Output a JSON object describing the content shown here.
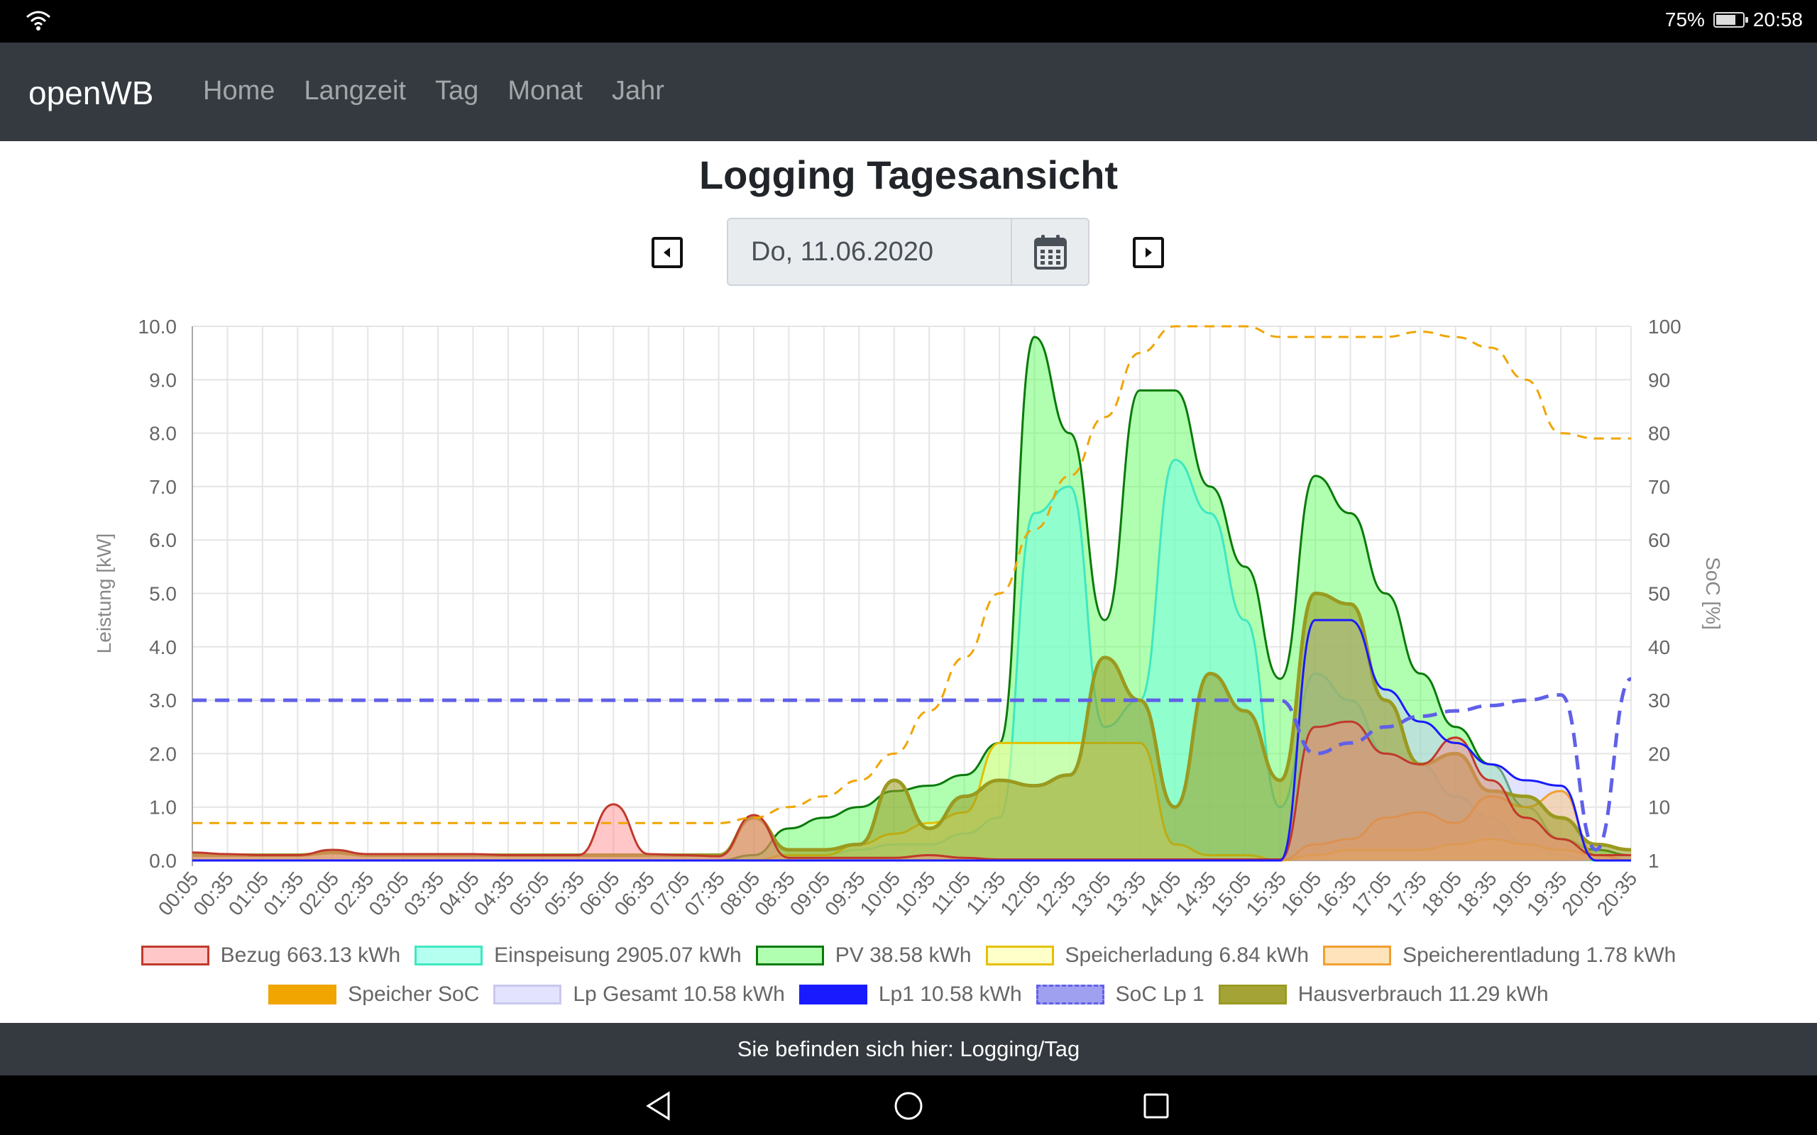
{
  "status": {
    "battery": "75%",
    "battery_level": 0.75,
    "time": "20:58"
  },
  "nav": {
    "brand": "openWB",
    "links": [
      "Home",
      "Langzeit",
      "Tag",
      "Monat",
      "Jahr"
    ]
  },
  "page": {
    "title": "Logging Tagesansicht",
    "date": "Do, 11.06.2020"
  },
  "footer": {
    "text": "Sie befinden sich hier: Logging/Tag"
  },
  "colors": {
    "bezug": "#c0392b",
    "bezug_fill": "rgba(255,130,130,0.45)",
    "einspeisung": "#3ee8c0",
    "einspeisung_fill": "rgba(120,255,230,0.55)",
    "pv": "#0a7a0a",
    "pv_fill": "rgba(80,255,80,0.45)",
    "speicherladung": "#e5c000",
    "speicherladung_fill": "rgba(255,255,150,0.5)",
    "speicherentladung": "#f0a030",
    "speicherentladung_fill": "rgba(255,200,120,0.5)",
    "speicher_soc": "#f0a500",
    "lp_gesamt_fill": "rgba(200,200,255,0.5)",
    "lp1": "#1a1aff",
    "soc_lp1": "#6060e8",
    "hausverbrauch": "#9a9a20"
  },
  "chart_data": {
    "type": "line",
    "x": [
      "00:05",
      "00:35",
      "01:05",
      "01:35",
      "02:05",
      "02:35",
      "03:05",
      "03:35",
      "04:05",
      "04:35",
      "05:05",
      "05:35",
      "06:05",
      "06:35",
      "07:05",
      "07:35",
      "08:05",
      "08:35",
      "09:05",
      "09:35",
      "10:05",
      "10:35",
      "11:05",
      "11:35",
      "12:05",
      "12:35",
      "13:05",
      "13:35",
      "14:05",
      "14:35",
      "15:05",
      "15:35",
      "16:05",
      "16:35",
      "17:05",
      "17:35",
      "18:05",
      "18:35",
      "19:05",
      "19:35",
      "20:05",
      "20:35"
    ],
    "ylabel": "Leistung [kW]",
    "y2label": "SoC [%]",
    "ylim": [
      0,
      10
    ],
    "yticks": [
      "0.0",
      "1.0",
      "2.0",
      "3.0",
      "4.0",
      "5.0",
      "6.0",
      "7.0",
      "8.0",
      "9.0",
      "10.0"
    ],
    "y2lim": [
      0,
      100
    ],
    "y2ticks": [
      "1",
      "10",
      "20",
      "30",
      "40",
      "50",
      "60",
      "70",
      "80",
      "90",
      "100"
    ],
    "grid": true,
    "legend_position": "bottom",
    "series": [
      {
        "name": "Bezug 663.13 kWh",
        "type": "area",
        "values": [
          0.15,
          0.12,
          0.1,
          0.1,
          0.2,
          0.12,
          0.12,
          0.12,
          0.12,
          0.1,
          0.1,
          0.1,
          1.05,
          0.12,
          0.1,
          0.08,
          0.85,
          0.05,
          0.05,
          0.05,
          0.05,
          0.1,
          0.05,
          0.02,
          0.02,
          0.02,
          0.02,
          0.02,
          0.02,
          0.02,
          0.02,
          0.02,
          2.5,
          2.6,
          2.0,
          1.8,
          2.3,
          1.5,
          0.8,
          0.4,
          0.1,
          0.1
        ]
      },
      {
        "name": "Einspeisung 2905.07 kWh",
        "type": "area",
        "values": [
          0,
          0,
          0,
          0,
          0,
          0,
          0,
          0,
          0,
          0,
          0,
          0,
          0,
          0,
          0,
          0,
          0,
          0.1,
          0.1,
          0.2,
          0.3,
          0.3,
          0.5,
          0.8,
          6.5,
          7.0,
          2.5,
          3.0,
          7.5,
          6.5,
          4.5,
          1.0,
          3.5,
          3.0,
          2.0,
          1.8,
          1.2,
          0.8,
          0.3,
          0.1,
          0,
          0
        ]
      },
      {
        "name": "PV 38.58 kWh",
        "type": "area",
        "values": [
          0,
          0,
          0,
          0,
          0,
          0,
          0,
          0,
          0,
          0,
          0,
          0,
          0,
          0,
          0,
          0,
          0.1,
          0.6,
          0.8,
          1.0,
          1.3,
          1.4,
          1.6,
          2.2,
          9.8,
          8.0,
          4.5,
          8.8,
          8.8,
          7.0,
          5.5,
          3.4,
          7.2,
          6.5,
          5.0,
          3.5,
          2.5,
          1.8,
          1.0,
          0.4,
          0.2,
          0.1
        ]
      },
      {
        "name": "Speicherladung 6.84 kWh",
        "type": "area",
        "values": [
          0,
          0,
          0,
          0,
          0,
          0,
          0,
          0,
          0,
          0,
          0,
          0,
          0,
          0,
          0,
          0,
          0,
          0.1,
          0.1,
          0.3,
          0.5,
          0.7,
          0.9,
          2.2,
          2.2,
          2.2,
          2.2,
          2.2,
          0.3,
          0.1,
          0.1,
          0,
          0.1,
          0.2,
          0.2,
          0.2,
          0.3,
          0.4,
          0.3,
          0.2,
          0.1,
          0
        ]
      },
      {
        "name": "Speicherentladung 1.78 kWh",
        "type": "area",
        "values": [
          0,
          0,
          0,
          0,
          0,
          0,
          0,
          0,
          0,
          0,
          0,
          0,
          0,
          0,
          0,
          0,
          0,
          0,
          0,
          0,
          0,
          0,
          0,
          0,
          0,
          0,
          0,
          0,
          0,
          0,
          0,
          0,
          0.3,
          0.4,
          0.8,
          0.9,
          0.7,
          1.2,
          1.0,
          1.3,
          0.1,
          0
        ]
      },
      {
        "name": "Speicher SoC",
        "type": "line",
        "axis": "right",
        "dashed": true,
        "values": [
          7,
          7,
          7,
          7,
          7,
          7,
          7,
          7,
          7,
          7,
          7,
          7,
          7,
          7,
          7,
          7,
          8,
          10,
          12,
          15,
          20,
          28,
          38,
          50,
          62,
          72,
          83,
          95,
          100,
          100,
          100,
          98,
          98,
          98,
          98,
          99,
          98,
          96,
          90,
          80,
          79,
          79
        ]
      },
      {
        "name": "Lp Gesamt 10.58 kWh",
        "type": "area",
        "values": [
          0,
          0,
          0,
          0,
          0,
          0,
          0,
          0,
          0,
          0,
          0,
          0,
          0,
          0,
          0,
          0,
          0,
          0,
          0,
          0,
          0,
          0,
          0,
          0,
          0,
          0,
          0,
          0,
          0,
          0,
          0,
          0,
          4.5,
          4.5,
          3.2,
          2.6,
          2.2,
          1.8,
          1.5,
          1.4,
          0,
          0
        ]
      },
      {
        "name": "Lp1 10.58 kWh",
        "type": "line",
        "values": [
          0,
          0,
          0,
          0,
          0,
          0,
          0,
          0,
          0,
          0,
          0,
          0,
          0,
          0,
          0,
          0,
          0,
          0,
          0,
          0,
          0,
          0,
          0,
          0,
          0,
          0,
          0,
          0,
          0,
          0,
          0,
          0,
          4.5,
          4.5,
          3.2,
          2.6,
          2.2,
          1.8,
          1.5,
          1.4,
          0,
          0
        ]
      },
      {
        "name": "SoC Lp 1",
        "type": "line",
        "axis": "right",
        "dashed": true,
        "values": [
          30,
          30,
          30,
          30,
          30,
          30,
          30,
          30,
          30,
          30,
          30,
          30,
          30,
          30,
          30,
          30,
          30,
          30,
          30,
          30,
          30,
          30,
          30,
          30,
          30,
          30,
          30,
          30,
          30,
          30,
          30,
          30,
          20,
          22,
          25,
          27,
          28,
          29,
          30,
          31,
          2,
          34
        ]
      },
      {
        "name": "Hausverbrauch 11.29 kWh",
        "type": "area",
        "values": [
          0.1,
          0.1,
          0.1,
          0.1,
          0.15,
          0.1,
          0.1,
          0.1,
          0.1,
          0.1,
          0.1,
          0.1,
          0.1,
          0.1,
          0.1,
          0.1,
          0.8,
          0.2,
          0.2,
          0.3,
          1.5,
          0.6,
          1.2,
          1.5,
          1.4,
          1.6,
          3.8,
          3.0,
          1.0,
          3.5,
          2.8,
          1.5,
          5.0,
          4.8,
          3.0,
          1.8,
          2.0,
          1.3,
          1.2,
          0.8,
          0.3,
          0.2
        ]
      }
    ]
  }
}
